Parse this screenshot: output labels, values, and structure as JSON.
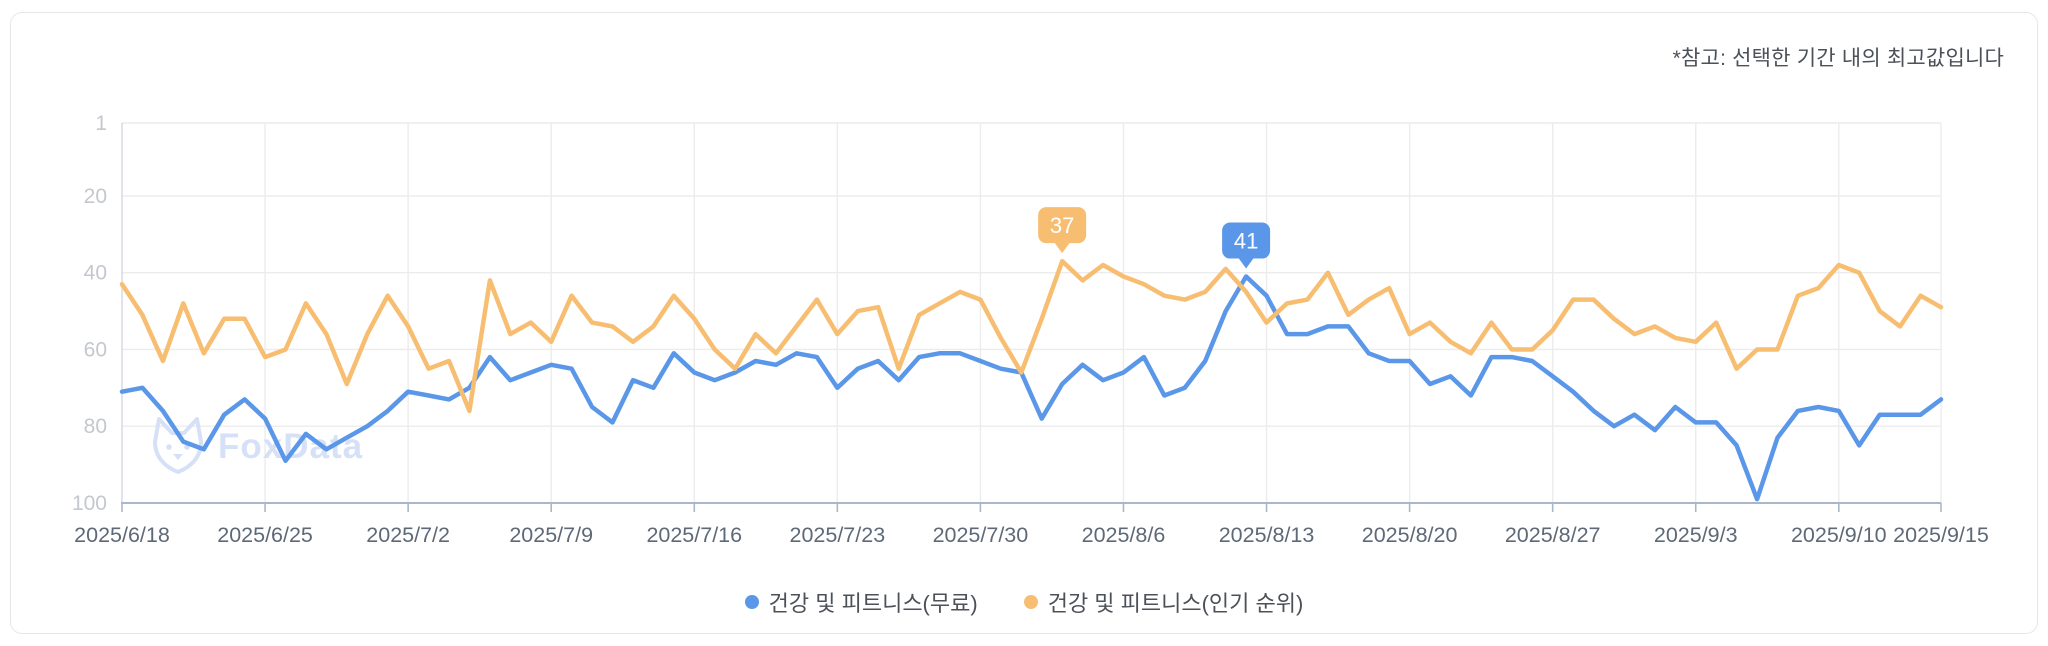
{
  "note": "*참고: 선택한 기간 내의 최고값입니다",
  "watermark": "FoxData",
  "colors": {
    "series_free_blue": "#5b97e8",
    "series_popular_orange": "#f7be72",
    "grid_line": "#ececec",
    "axis_left_line": "#d9dee4",
    "axis_baseline": "#a9b8c8",
    "y_tick_text": "#c4c8ce",
    "x_tick_text": "#5e6977",
    "note_text": "#4b5158",
    "watermark_text": "#d6e1f7",
    "badge_text": "#ffffff",
    "card_border": "#e7e7e7"
  },
  "chart_data": {
    "type": "line",
    "title": "",
    "ylabel": "",
    "xlabel": "",
    "grid": true,
    "legend_position": "bottom",
    "y_axis": {
      "inverted": true,
      "range": [
        1,
        100
      ],
      "ticks": [
        1,
        20,
        40,
        60,
        80,
        100
      ]
    },
    "x_axis": {
      "days_total": 90,
      "start": "2025/6/18",
      "end": "2025/9/15",
      "tick_labels": [
        "2025/6/18",
        "2025/6/25",
        "2025/7/2",
        "2025/7/9",
        "2025/7/16",
        "2025/7/23",
        "2025/7/30",
        "2025/8/6",
        "2025/8/13",
        "2025/8/20",
        "2025/8/27",
        "2025/9/3",
        "2025/9/10",
        "2025/9/15"
      ],
      "tick_day_index": [
        0,
        7,
        14,
        21,
        28,
        35,
        42,
        49,
        56,
        63,
        70,
        77,
        84,
        89
      ]
    },
    "series": [
      {
        "name": "건강 및 피트니스(무료)",
        "color": "#5b97e8",
        "values": [
          71,
          70,
          76,
          84,
          86,
          77,
          73,
          78,
          89,
          82,
          86,
          83,
          80,
          76,
          71,
          72,
          73,
          70,
          62,
          68,
          66,
          64,
          65,
          75,
          79,
          68,
          70,
          61,
          66,
          68,
          66,
          63,
          64,
          61,
          62,
          70,
          65,
          63,
          68,
          62,
          61,
          61,
          63,
          65,
          66,
          78,
          69,
          64,
          68,
          66,
          62,
          72,
          70,
          63,
          50,
          41,
          46,
          56,
          56,
          54,
          54,
          61,
          63,
          63,
          69,
          67,
          72,
          62,
          62,
          63,
          67,
          71,
          76,
          80,
          77,
          81,
          75,
          79,
          79,
          85,
          99,
          83,
          76,
          75,
          76,
          85,
          77,
          77,
          77,
          73
        ]
      },
      {
        "name": "건강 및 피트니스(인기 순위)",
        "color": "#f7be72",
        "values": [
          43,
          51,
          63,
          48,
          61,
          52,
          52,
          62,
          60,
          48,
          56,
          69,
          56,
          46,
          54,
          65,
          63,
          76,
          42,
          56,
          53,
          58,
          46,
          53,
          54,
          58,
          54,
          46,
          52,
          60,
          65,
          56,
          61,
          54,
          47,
          56,
          50,
          49,
          65,
          51,
          48,
          45,
          47,
          57,
          66,
          52,
          37,
          42,
          38,
          41,
          43,
          46,
          47,
          45,
          39,
          45,
          53,
          48,
          47,
          40,
          51,
          47,
          44,
          56,
          53,
          58,
          61,
          53,
          60,
          60,
          55,
          47,
          47,
          52,
          56,
          54,
          57,
          58,
          53,
          65,
          60,
          60,
          46,
          44,
          38,
          40,
          50,
          54,
          46,
          49
        ]
      }
    ],
    "annotations": [
      {
        "series": 1,
        "day_index": 46,
        "label": "37"
      },
      {
        "series": 0,
        "day_index": 55,
        "label": "41"
      }
    ]
  }
}
